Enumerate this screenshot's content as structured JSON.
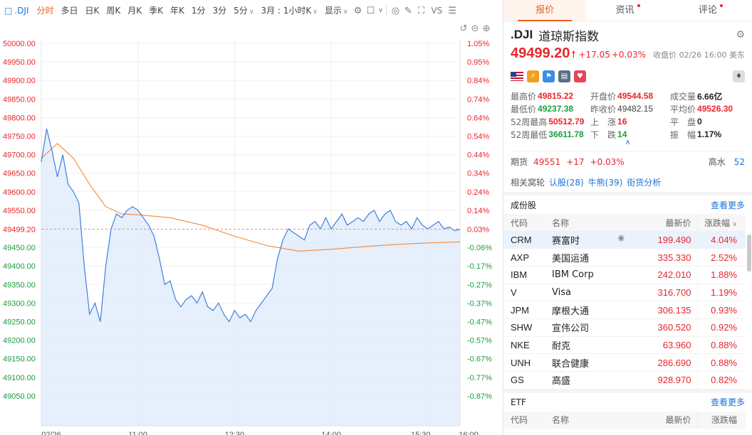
{
  "toolbar": {
    "symbol": ".DJI",
    "periods": [
      "分时",
      "多日",
      "日K",
      "周K",
      "月K",
      "季K",
      "年K",
      "1分",
      "3分",
      "5分"
    ],
    "active_period": "分时",
    "interval": "3月 : 1小时K",
    "display": "显示",
    "vs": "VS"
  },
  "chart_data": {
    "type": "line",
    "title": "",
    "prev_close": 49482.15,
    "last": 49499.2,
    "y_ticks": [
      50000,
      49950,
      49900,
      49850,
      49800,
      49750,
      49700,
      49650,
      49600,
      49550,
      49499.2,
      49450,
      49400,
      49350,
      49300,
      49250,
      49200,
      49150,
      49100,
      49050
    ],
    "y_tick_labels": [
      "50000.00",
      "49950.00",
      "49900.00",
      "49850.00",
      "49800.00",
      "49750.00",
      "49700.00",
      "49650.00",
      "49600.00",
      "49550.00",
      "49499.20",
      "49450.00",
      "49400.00",
      "49350.00",
      "49300.00",
      "49250.00",
      "49200.00",
      "49150.00",
      "49100.00",
      "49050.00"
    ],
    "pct_labels": [
      "1.05%",
      "0.95%",
      "0.84%",
      "0.74%",
      "0.64%",
      "0.54%",
      "0.44%",
      "0.34%",
      "0.24%",
      "0.14%",
      "0.03%",
      "-0.06%",
      "-0.17%",
      "-0.27%",
      "-0.37%",
      "-0.47%",
      "-0.57%",
      "-0.67%",
      "-0.77%",
      "-0.87%"
    ],
    "x_labels": [
      "02/26",
      "11:00",
      "12:30",
      "14:00",
      "15:30",
      "16:00"
    ],
    "price": {
      "x": [
        "09:30",
        "09:35",
        "09:40",
        "09:45",
        "09:50",
        "09:55",
        "10:00",
        "10:05",
        "10:10",
        "10:15",
        "10:20",
        "10:25",
        "10:30",
        "10:35",
        "10:40",
        "10:45",
        "10:50",
        "10:55",
        "11:00",
        "11:05",
        "11:10",
        "11:15",
        "11:20",
        "11:25",
        "11:30",
        "11:35",
        "11:40",
        "11:45",
        "11:50",
        "11:55",
        "12:00",
        "12:05",
        "12:10",
        "12:15",
        "12:20",
        "12:25",
        "12:30",
        "12:35",
        "12:40",
        "12:45",
        "12:50",
        "12:55",
        "13:00",
        "13:05",
        "13:10",
        "13:15",
        "13:20",
        "13:25",
        "13:30",
        "13:35",
        "13:40",
        "13:45",
        "13:50",
        "13:55",
        "14:00",
        "14:05",
        "14:10",
        "14:15",
        "14:20",
        "14:25",
        "14:30",
        "14:35",
        "14:40",
        "14:45",
        "14:50",
        "14:55",
        "15:00",
        "15:05",
        "15:10",
        "15:15",
        "15:20",
        "15:25",
        "15:30",
        "15:35",
        "15:40",
        "15:45",
        "15:50",
        "15:55",
        "16:00"
      ],
      "y": [
        49680,
        49770,
        49710,
        49640,
        49700,
        49620,
        49600,
        49570,
        49400,
        49270,
        49300,
        49250,
        49400,
        49500,
        49540,
        49530,
        49550,
        49560,
        49550,
        49530,
        49510,
        49480,
        49420,
        49350,
        49360,
        49310,
        49290,
        49310,
        49320,
        49300,
        49330,
        49290,
        49280,
        49300,
        49270,
        49250,
        49280,
        49260,
        49270,
        49250,
        49280,
        49300,
        49320,
        49340,
        49420,
        49470,
        49500,
        49490,
        49480,
        49470,
        49510,
        49520,
        49500,
        49530,
        49500,
        49520,
        49540,
        49510,
        49520,
        49530,
        49520,
        49540,
        49550,
        49520,
        49540,
        49550,
        49520,
        49510,
        49520,
        49500,
        49530,
        49510,
        49500,
        49510,
        49520,
        49500,
        49505,
        49495,
        49499.2
      ]
    },
    "average": {
      "x": [
        "09:30",
        "09:45",
        "10:00",
        "10:15",
        "10:30",
        "10:45",
        "11:00",
        "11:30",
        "12:00",
        "12:30",
        "13:00",
        "13:30",
        "14:00",
        "14:30",
        "15:00",
        "15:30",
        "16:00"
      ],
      "y": [
        49690,
        49730,
        49690,
        49620,
        49560,
        49540,
        49538,
        49530,
        49510,
        49480,
        49455,
        49440,
        49445,
        49452,
        49458,
        49462,
        49465
      ]
    },
    "grid": true,
    "colors": {
      "line": "#3f7fe0",
      "fill": "#dbe8fb",
      "avg": "#f08a3c",
      "up": "#e8262b",
      "down": "#1b9e3e"
    }
  },
  "tabs": {
    "quote": "报价",
    "news": "资讯",
    "comment": "评论"
  },
  "quote": {
    "code": ".DJI",
    "name": "道琼斯指数",
    "price": "49499.20",
    "change": "+17.05",
    "change_pct": "+0.03%",
    "close_info": "收盘价 02/26 16:00 美东",
    "stats": {
      "high_k": "最高价",
      "high": "49815.22",
      "open_k": "开盘价",
      "open": "49544.58",
      "vol_k": "成交量",
      "vol": "6.66亿",
      "low_k": "最低价",
      "low": "49237.38",
      "prev_k": "昨收价",
      "prev": "49482.15",
      "avg_k": "平均价",
      "avg": "49526.30",
      "w52h_k": "52周最高",
      "w52h": "50512.79",
      "up_k": "上　涨",
      "up": "16",
      "flat_k": "平　盘",
      "flat": "0",
      "w52l_k": "52周最低",
      "w52l": "36611.78",
      "down_k": "下　跌",
      "down": "14",
      "amp_k": "振　幅",
      "amp": "1.17%"
    },
    "futures_k": "期货",
    "futures_price": "49551",
    "futures_chg": "+17",
    "futures_pct": "+0.03%",
    "premium_k": "高水",
    "premium": "52",
    "related_k": "相关窝轮",
    "related_links": [
      "认股(28)",
      "牛熊(39)",
      "街货分析"
    ]
  },
  "constituents": {
    "title": "成份股",
    "more": "查看更多",
    "headers": [
      "代码",
      "名称",
      "最新价",
      "涨跌幅"
    ],
    "rows": [
      {
        "code": "CRM",
        "name": "赛富时",
        "price": "199.490",
        "pct": "4.04%"
      },
      {
        "code": "AXP",
        "name": "美国运通",
        "price": "335.330",
        "pct": "2.52%"
      },
      {
        "code": "IBM",
        "name": "IBM Corp",
        "price": "242.010",
        "pct": "1.88%"
      },
      {
        "code": "V",
        "name": "Visa",
        "price": "316.700",
        "pct": "1.19%"
      },
      {
        "code": "JPM",
        "name": "摩根大通",
        "price": "306.135",
        "pct": "0.93%"
      },
      {
        "code": "SHW",
        "name": "宣伟公司",
        "price": "360.520",
        "pct": "0.92%"
      },
      {
        "code": "NKE",
        "name": "耐克",
        "price": "63.960",
        "pct": "0.88%"
      },
      {
        "code": "UNH",
        "name": "联合健康",
        "price": "286.690",
        "pct": "0.88%"
      },
      {
        "code": "GS",
        "name": "高盛",
        "price": "928.970",
        "pct": "0.82%"
      }
    ]
  },
  "etf": {
    "title": "ETF",
    "more": "查看更多",
    "headers": [
      "代码",
      "名称",
      "最新价",
      "涨跌幅"
    ]
  }
}
